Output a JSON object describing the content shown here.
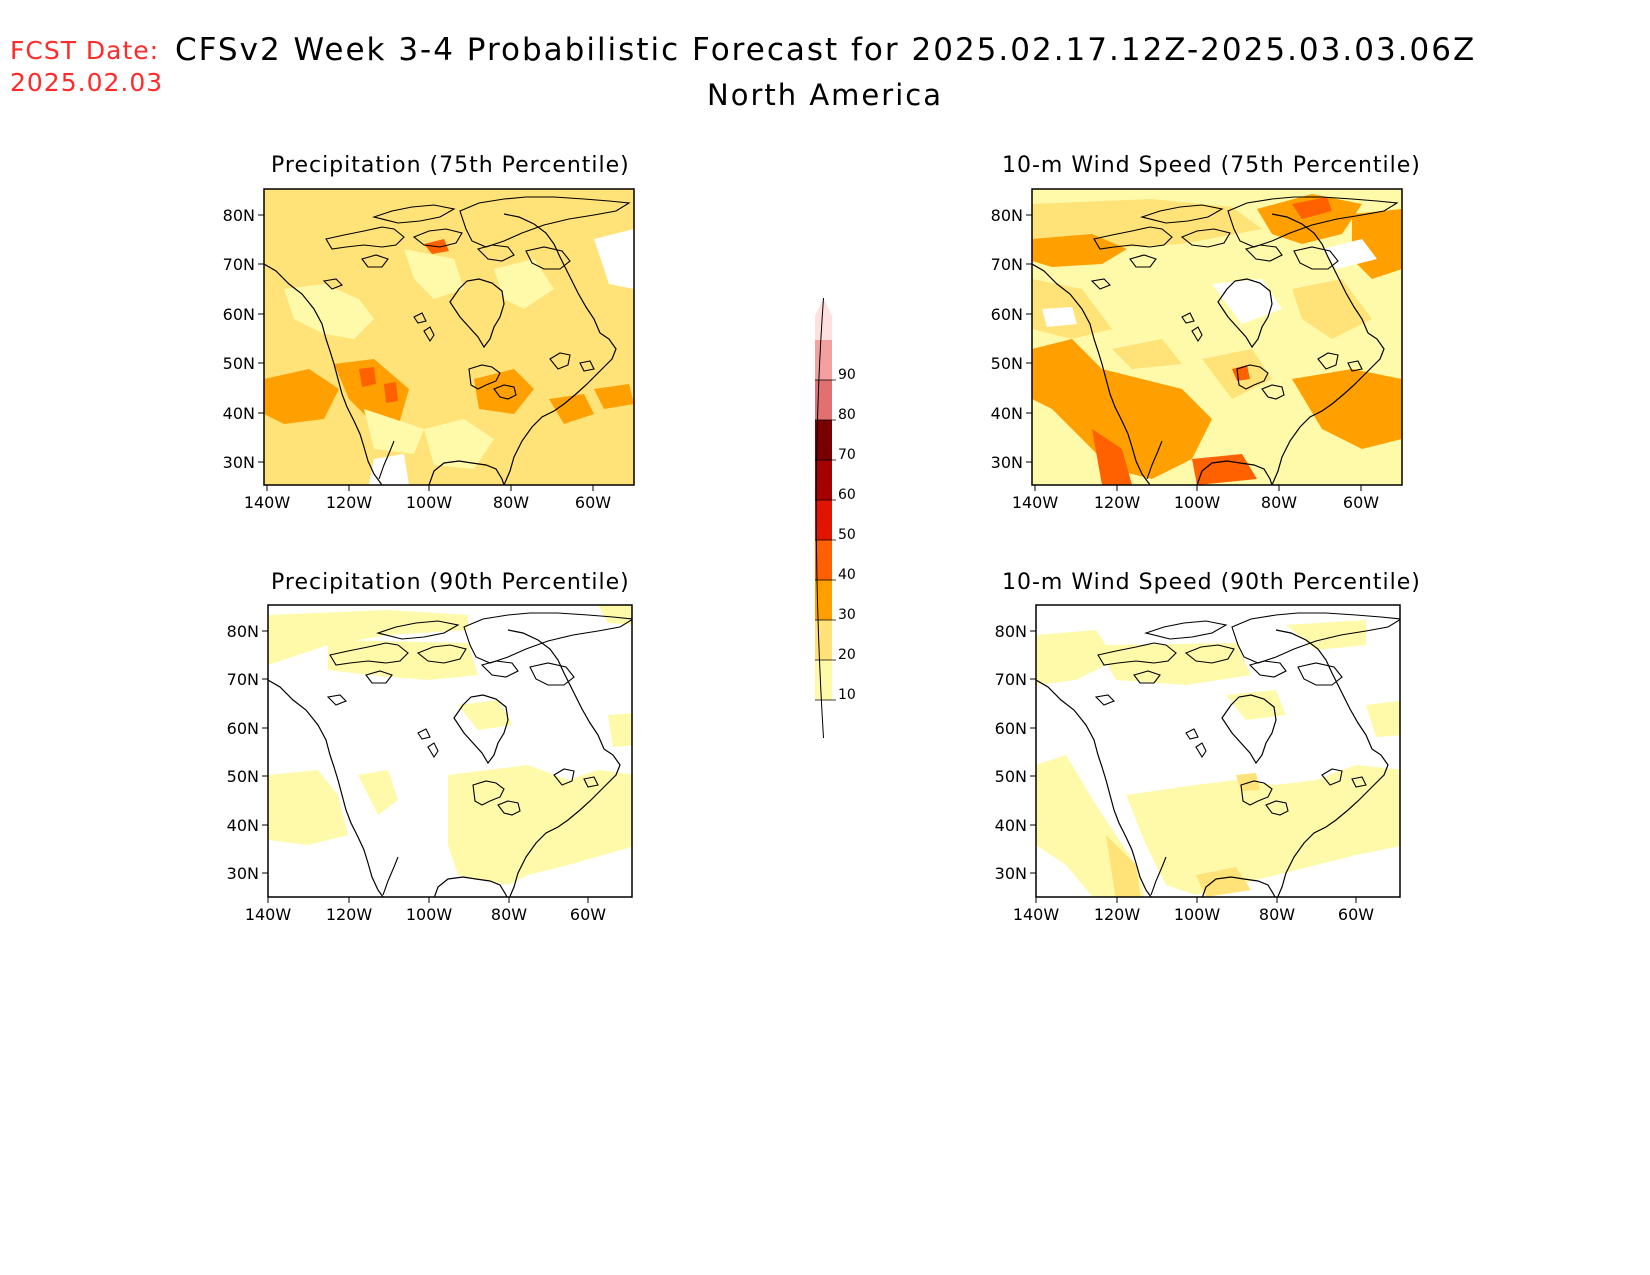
{
  "header": {
    "fcst_label": "FCST Date:",
    "fcst_date": "2025.02.03",
    "title": "CFSv2 Week 3-4 Probabilistic Forecast for 2025.02.17.12Z-2025.03.03.06Z",
    "subtitle": "North America"
  },
  "panels": [
    {
      "title": "Precipitation (75th Percentile)"
    },
    {
      "title": "10-m Wind Speed (75th Percentile)"
    },
    {
      "title": "Precipitation (90th Percentile)"
    },
    {
      "title": "10-m Wind Speed (90th Percentile)"
    }
  ],
  "axes": {
    "lat_labels": [
      "80N",
      "70N",
      "60N",
      "50N",
      "40N",
      "30N"
    ],
    "lon_labels": [
      "140W",
      "120W",
      "100W",
      "80W",
      "60W"
    ]
  },
  "colorbar": {
    "labels": [
      "10",
      "20",
      "30",
      "40",
      "50",
      "60",
      "70",
      "80",
      "90"
    ],
    "colors": [
      "#fffaaa",
      "#ffe278",
      "#ffa000",
      "#ff6000",
      "#e11400",
      "#a50000",
      "#780000",
      "#e17070",
      "#f5a0a0",
      "#ffe0e0"
    ]
  }
}
